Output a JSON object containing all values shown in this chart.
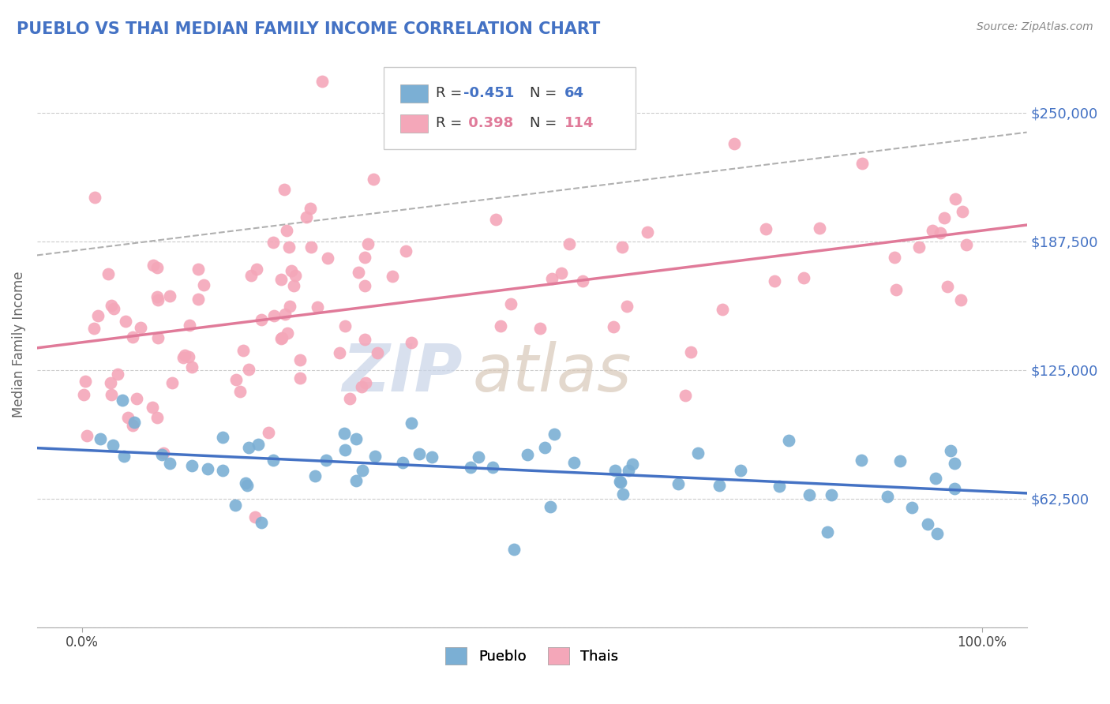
{
  "title": "PUEBLO VS THAI MEDIAN FAMILY INCOME CORRELATION CHART",
  "title_color": "#4472c4",
  "source_text": "Source: ZipAtlas.com",
  "ylabel": "Median Family Income",
  "xlim": [
    -5,
    105
  ],
  "ylim": [
    0,
    275000
  ],
  "yticks": [
    0,
    62500,
    125000,
    187500,
    250000
  ],
  "ytick_labels": [
    "",
    "$62,500",
    "$125,000",
    "$187,500",
    "$250,000"
  ],
  "legend_r_pueblo": "-0.451",
  "legend_n_pueblo": "64",
  "legend_r_thai": "0.398",
  "legend_n_thai": "114",
  "pueblo_color": "#7bafd4",
  "thai_color": "#f4a7b9",
  "pueblo_line_color": "#4472c4",
  "thai_line_color": "#e07a99",
  "dashed_line_color": "#b0b0b0",
  "watermark": "ZIPatlas",
  "watermark_zip_color": "#c8d4e8",
  "watermark_atlas_color": "#d8c8b8",
  "background_color": "#ffffff",
  "grid_color": "#cccccc",
  "bottom_legend_labels": [
    "Pueblo",
    "Thais"
  ]
}
